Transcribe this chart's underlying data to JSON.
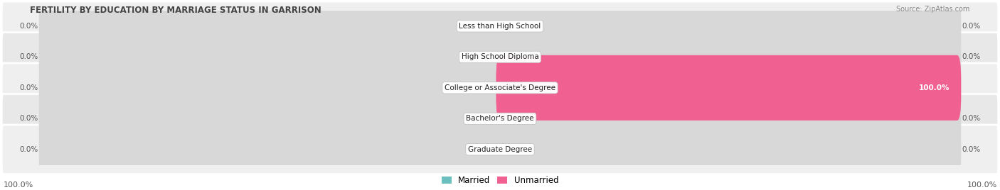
{
  "title": "FERTILITY BY EDUCATION BY MARRIAGE STATUS IN GARRISON",
  "source": "Source: ZipAtlas.com",
  "categories": [
    "Less than High School",
    "High School Diploma",
    "College or Associate's Degree",
    "Bachelor's Degree",
    "Graduate Degree"
  ],
  "married_values": [
    0.0,
    0.0,
    0.0,
    0.0,
    0.0
  ],
  "unmarried_values": [
    0.0,
    0.0,
    100.0,
    0.0,
    0.0
  ],
  "married_left_labels": [
    "0.0%",
    "0.0%",
    "0.0%",
    "0.0%",
    "0.0%"
  ],
  "unmarried_right_labels": [
    "0.0%",
    "0.0%",
    "100.0%",
    "0.0%",
    "0.0%"
  ],
  "bottom_left_label": "100.0%",
  "bottom_right_label": "100.0%",
  "married_color": "#6CBFBF",
  "unmarried_color": "#F06090",
  "bar_bg_married": "#D8D8D8",
  "bar_bg_unmarried": "#D8D8D8",
  "row_bg_even": "#EFEFEF",
  "row_bg_odd": "#E8E8E8",
  "title_color": "#444444",
  "label_color": "#555555",
  "source_color": "#888888",
  "max_value": 100.0,
  "bar_height": 0.52,
  "figsize": [
    14.06,
    2.68
  ],
  "legend_labels": [
    "Married",
    "Unmarried"
  ]
}
